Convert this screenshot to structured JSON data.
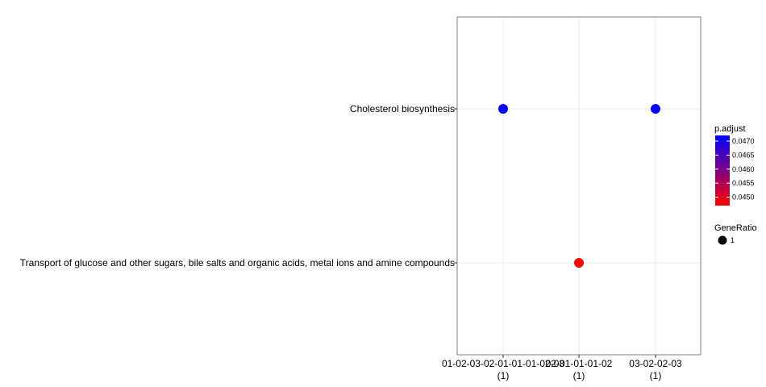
{
  "chart_data": {
    "type": "scatter",
    "title": "",
    "xlabel": "",
    "ylabel": "",
    "categories": [
      "01-02-03-02-01-01-01-02-03",
      "02-01-01-01-02",
      "03-02-02-03"
    ],
    "category_counts": [
      "(1)",
      "(1)",
      "(1)"
    ],
    "y_categories": [
      "Transport of glucose and other sugars, bile salts and organic acids, metal ions and amine compounds",
      "Cholesterol biosynthesis"
    ],
    "points": [
      {
        "x": "01-02-03-02-01-01-01-02-03",
        "y": "Cholesterol biosynthesis",
        "gene_ratio": 1,
        "p_adjust": 0.0472
      },
      {
        "x": "02-01-01-01-02",
        "y": "Transport of glucose and other sugars, bile salts and organic acids, metal ions and amine compounds",
        "gene_ratio": 1,
        "p_adjust": 0.0447
      },
      {
        "x": "03-02-02-03",
        "y": "Cholesterol biosynthesis",
        "gene_ratio": 1,
        "p_adjust": 0.0472
      }
    ],
    "grid": true,
    "legend_position": "right",
    "color_legend": {
      "title": "p.adjust",
      "min": 0.0447,
      "max": 0.0472,
      "low_color": "#ff0000",
      "high_color": "#0000ff",
      "ticks": [
        0.045,
        0.0455,
        0.046,
        0.0465,
        0.047
      ],
      "tick_labels": [
        "0.0450",
        "0.0455",
        "0.0460",
        "0.0465",
        "0.0470"
      ]
    },
    "size_legend": {
      "title": "GeneRatio",
      "values": [
        1
      ],
      "labels": [
        "1"
      ]
    }
  }
}
